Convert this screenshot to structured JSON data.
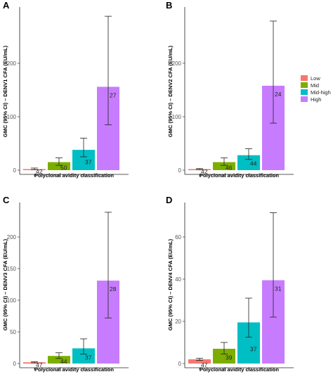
{
  "legend": {
    "entries": [
      {
        "name": "Low",
        "color": "#f8766d"
      },
      {
        "name": "Mid",
        "color": "#7cae00"
      },
      {
        "name": "Mid-high",
        "color": "#00bfc4"
      },
      {
        "name": "High",
        "color": "#c77cff"
      }
    ],
    "placement": "right-middle"
  },
  "chart_data": [
    {
      "panel": "A",
      "type": "bar",
      "xlabel": "Polyclonal avidity classification",
      "ylabel": "GMC (95% CI) – DENV1 CFA (EU/mL)",
      "ylim": [
        0,
        300
      ],
      "yticks": [
        0,
        100,
        200
      ],
      "grid": false,
      "categories": [
        "Low",
        "Mid",
        "Mid-high",
        "High"
      ],
      "values": [
        2,
        15,
        38,
        156
      ],
      "ci_low": [
        1,
        9,
        25,
        85
      ],
      "ci_high": [
        4,
        23,
        60,
        288
      ],
      "n": [
        "42",
        "50",
        "37",
        "27"
      ]
    },
    {
      "panel": "B",
      "type": "bar",
      "xlabel": "Polyclonal avidity classification",
      "ylabel": "GMC (95% CI) – DENV2 CFA (EU/mL)",
      "ylim": [
        0,
        300
      ],
      "yticks": [
        0,
        100,
        200
      ],
      "grid": false,
      "categories": [
        "Low",
        "Mid",
        "Mid-high",
        "High"
      ],
      "values": [
        2,
        15,
        28,
        158
      ],
      "ci_low": [
        1,
        9,
        20,
        88
      ],
      "ci_high": [
        3,
        23,
        40,
        279
      ],
      "n": [
        "42",
        "46",
        "44",
        "24"
      ]
    },
    {
      "panel": "C",
      "type": "bar",
      "xlabel": "Polyclonal avidity classification",
      "ylabel": "GMC (95% CI) – DENV3 CFA (EU/mL)",
      "ylim": [
        0,
        250
      ],
      "yticks": [
        0,
        50,
        100,
        150,
        200
      ],
      "grid": false,
      "categories": [
        "Low",
        "Mid",
        "Mid-high",
        "High"
      ],
      "values": [
        2,
        12,
        24,
        131
      ],
      "ci_low": [
        1,
        8,
        15,
        72
      ],
      "ci_high": [
        3,
        17,
        39,
        239
      ],
      "n": [
        "47",
        "44",
        "37",
        "28"
      ]
    },
    {
      "panel": "D",
      "type": "bar",
      "xlabel": "Polyclonal avidity classification",
      "ylabel": "GMC (95% CI) – DENV4 CFA (EU/mL)",
      "ylim": [
        0,
        75
      ],
      "yticks": [
        0,
        20,
        40,
        60
      ],
      "grid": false,
      "categories": [
        "Low",
        "Mid",
        "Mid-high",
        "High"
      ],
      "values": [
        2,
        7,
        19.5,
        39.5
      ],
      "ci_low": [
        1.5,
        4.5,
        12.5,
        22
      ],
      "ci_high": [
        2.5,
        10,
        31,
        71.5
      ],
      "n": [
        "47",
        "39",
        "37",
        "31"
      ]
    }
  ]
}
